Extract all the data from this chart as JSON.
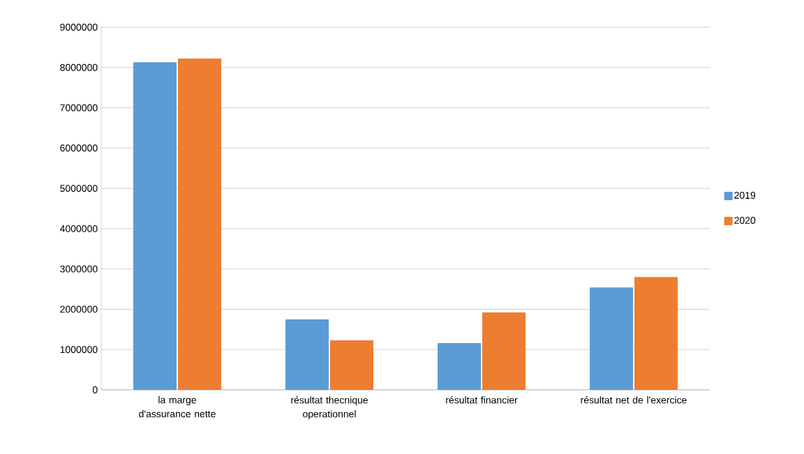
{
  "chart_data": {
    "type": "bar",
    "categories": [
      "la marge d'assurance nette",
      "résultat thecnique operationnel",
      "résultat financier",
      "résultat net de l'exercice"
    ],
    "series": [
      {
        "name": "2019",
        "color": "#5b9bd5",
        "values": [
          8130000,
          1750000,
          1160000,
          2540000
        ]
      },
      {
        "name": "2020",
        "color": "#ed7d31",
        "values": [
          8220000,
          1230000,
          1920000,
          2800000
        ]
      }
    ],
    "ylim": [
      0,
      9000000
    ],
    "yticks": [
      0,
      1000000,
      2000000,
      3000000,
      4000000,
      5000000,
      6000000,
      7000000,
      8000000,
      9000000
    ],
    "grid": "y",
    "legend": "right"
  }
}
